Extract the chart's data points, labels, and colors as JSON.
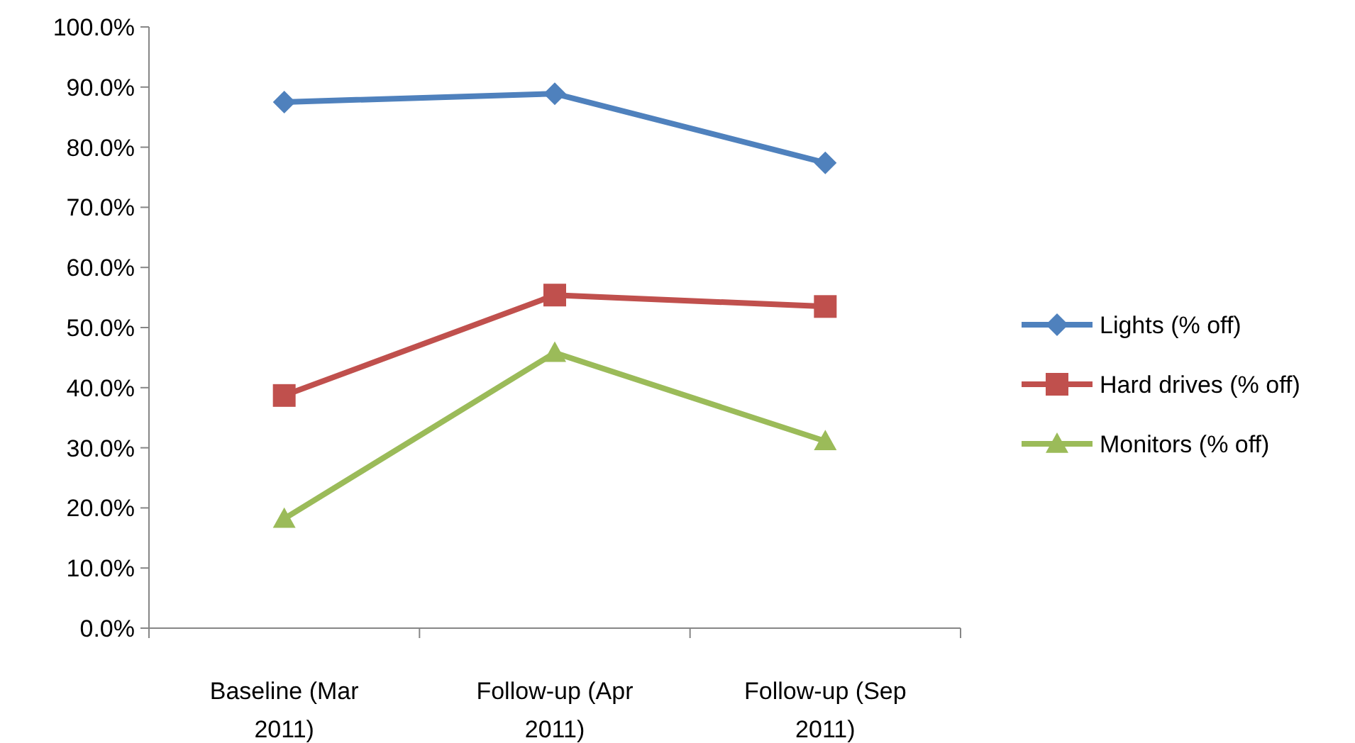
{
  "chart_data": {
    "type": "line",
    "categories": [
      "Baseline (Mar 2011)",
      "Follow-up (Apr 2011)",
      "Follow-up (Sep 2011)"
    ],
    "series": [
      {
        "name": "Lights (% off)",
        "color": "#4f81bd",
        "marker": "diamond",
        "values": [
          87.5,
          88.9,
          77.4
        ]
      },
      {
        "name": "Hard drives (% off)",
        "color": "#c0504d",
        "marker": "square",
        "values": [
          38.7,
          55.4,
          53.5
        ]
      },
      {
        "name": "Monitors (% off)",
        "color": "#9bbb59",
        "marker": "triangle",
        "values": [
          18.2,
          45.8,
          31.1
        ]
      }
    ],
    "ylim": [
      0,
      100
    ],
    "yticks": [
      {
        "value": 0,
        "label": "0.0%"
      },
      {
        "value": 10,
        "label": "10.0%"
      },
      {
        "value": 20,
        "label": "20.0%"
      },
      {
        "value": 30,
        "label": "30.0%"
      },
      {
        "value": 40,
        "label": "40.0%"
      },
      {
        "value": 50,
        "label": "50.0%"
      },
      {
        "value": 60,
        "label": "60.0%"
      },
      {
        "value": 70,
        "label": "70.0%"
      },
      {
        "value": 80,
        "label": "80.0%"
      },
      {
        "value": 90,
        "label": "90.0%"
      },
      {
        "value": 100,
        "label": "100.0%"
      }
    ],
    "grid": false,
    "legend": "right",
    "line_style": "solid"
  }
}
